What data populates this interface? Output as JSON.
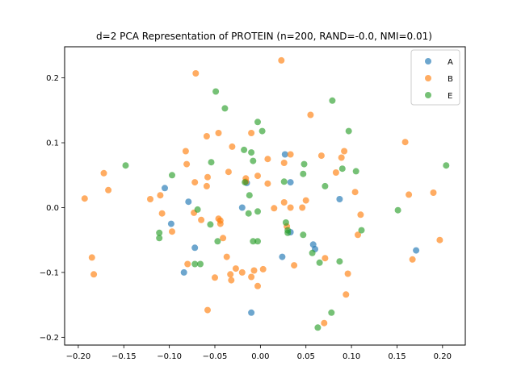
{
  "chart_data": {
    "type": "scatter",
    "title": "d=2 PCA Representation of PROTEIN (n=200, RAND=-0.0, NMI=0.01)",
    "xlabel": "",
    "ylabel": "",
    "xlim": [
      -0.215,
      0.225
    ],
    "ylim": [
      -0.212,
      0.248
    ],
    "xticks": [
      -0.2,
      -0.15,
      -0.1,
      -0.05,
      0.0,
      0.05,
      0.1,
      0.15,
      0.2
    ],
    "xtick_labels": [
      "−0.20",
      "−0.15",
      "−0.10",
      "−0.05",
      "0.00",
      "0.05",
      "0.10",
      "0.15",
      "0.20"
    ],
    "yticks": [
      -0.2,
      -0.1,
      0.0,
      0.1,
      0.2
    ],
    "ytick_labels": [
      "−0.2",
      "−0.1",
      "0.0",
      "0.1",
      "0.2"
    ],
    "grid": false,
    "legend_position": "top-right",
    "series": [
      {
        "name": "A",
        "color": "#1f77b4",
        "points": [
          [
            0.027,
            0.082
          ],
          [
            -0.105,
            0.03
          ],
          [
            -0.079,
            0.009
          ],
          [
            -0.098,
            -0.025
          ],
          [
            -0.072,
            -0.062
          ],
          [
            -0.084,
            -0.1
          ],
          [
            -0.02,
            0.0
          ],
          [
            -0.015,
            0.038
          ],
          [
            -0.01,
            -0.162
          ],
          [
            0.024,
            -0.076
          ],
          [
            0.033,
            0.039
          ],
          [
            0.033,
            -0.038
          ],
          [
            0.058,
            -0.057
          ],
          [
            0.06,
            -0.064
          ],
          [
            0.087,
            0.013
          ],
          [
            0.171,
            -0.066
          ]
        ]
      },
      {
        "name": "B",
        "color": "#ff7f0e",
        "points": [
          [
            -0.071,
            0.207
          ],
          [
            0.023,
            0.227
          ],
          [
            -0.193,
            0.014
          ],
          [
            -0.185,
            -0.077
          ],
          [
            -0.183,
            -0.103
          ],
          [
            -0.172,
            0.053
          ],
          [
            -0.167,
            0.027
          ],
          [
            -0.121,
            0.013
          ],
          [
            -0.11,
            0.019
          ],
          [
            -0.108,
            -0.009
          ],
          [
            -0.097,
            -0.037
          ],
          [
            -0.082,
            0.087
          ],
          [
            -0.081,
            0.067
          ],
          [
            -0.08,
            -0.087
          ],
          [
            -0.073,
            -0.008
          ],
          [
            -0.072,
            0.039
          ],
          [
            -0.065,
            -0.019
          ],
          [
            -0.059,
            0.11
          ],
          [
            -0.058,
            0.047
          ],
          [
            -0.058,
            -0.158
          ],
          [
            -0.059,
            0.033
          ],
          [
            -0.05,
            -0.108
          ],
          [
            -0.046,
            0.115
          ],
          [
            -0.046,
            -0.017
          ],
          [
            -0.044,
            -0.02
          ],
          [
            -0.044,
            -0.025
          ],
          [
            -0.041,
            -0.047
          ],
          [
            -0.035,
            0.055
          ],
          [
            -0.031,
            0.094
          ],
          [
            -0.033,
            -0.103
          ],
          [
            -0.032,
            -0.112
          ],
          [
            -0.037,
            -0.076
          ],
          [
            -0.027,
            -0.094
          ],
          [
            -0.02,
            -0.1
          ],
          [
            -0.016,
            0.04
          ],
          [
            -0.016,
            0.045
          ],
          [
            -0.01,
            0.115
          ],
          [
            -0.01,
            -0.107
          ],
          [
            -0.007,
            -0.097
          ],
          [
            -0.003,
            -0.121
          ],
          [
            -0.003,
            0.049
          ],
          [
            0.003,
            -0.095
          ],
          [
            0.008,
            0.075
          ],
          [
            0.008,
            0.037
          ],
          [
            0.015,
            -0.001
          ],
          [
            0.026,
            0.069
          ],
          [
            0.026,
            0.008
          ],
          [
            0.029,
            -0.029
          ],
          [
            0.033,
            0.082
          ],
          [
            0.037,
            -0.089
          ],
          [
            0.033,
            0.0
          ],
          [
            0.046,
            0.0
          ],
          [
            0.05,
            0.011
          ],
          [
            0.055,
            0.143
          ],
          [
            0.067,
            0.08
          ],
          [
            0.071,
            -0.078
          ],
          [
            0.07,
            -0.178
          ],
          [
            0.083,
            0.054
          ],
          [
            0.089,
            0.077
          ],
          [
            0.092,
            0.087
          ],
          [
            0.094,
            -0.134
          ],
          [
            0.096,
            -0.102
          ],
          [
            0.104,
            0.024
          ],
          [
            0.107,
            -0.042
          ],
          [
            0.11,
            -0.011
          ],
          [
            0.159,
            0.101
          ],
          [
            0.163,
            0.02
          ],
          [
            0.167,
            -0.08
          ],
          [
            0.19,
            0.023
          ],
          [
            0.197,
            -0.05
          ]
        ]
      },
      {
        "name": "E",
        "color": "#2ca02c",
        "points": [
          [
            -0.049,
            0.179
          ],
          [
            -0.039,
            0.153
          ],
          [
            -0.148,
            0.065
          ],
          [
            -0.097,
            0.05
          ],
          [
            -0.111,
            -0.039
          ],
          [
            -0.111,
            -0.047
          ],
          [
            -0.069,
            -0.003
          ],
          [
            -0.072,
            -0.087
          ],
          [
            -0.066,
            -0.087
          ],
          [
            -0.054,
            0.07
          ],
          [
            -0.055,
            -0.026
          ],
          [
            -0.047,
            -0.052
          ],
          [
            -0.018,
            0.089
          ],
          [
            -0.017,
            0.039
          ],
          [
            -0.013,
            -0.009
          ],
          [
            -0.01,
            0.085
          ],
          [
            -0.008,
            0.072
          ],
          [
            -0.003,
            0.132
          ],
          [
            -0.003,
            -0.006
          ],
          [
            0.002,
            0.118
          ],
          [
            -0.012,
            0.019
          ],
          [
            -0.008,
            -0.052
          ],
          [
            -0.003,
            -0.052
          ],
          [
            0.026,
            0.04
          ],
          [
            0.028,
            -0.023
          ],
          [
            0.03,
            -0.035
          ],
          [
            0.03,
            -0.039
          ],
          [
            0.047,
            0.052
          ],
          [
            0.048,
            0.067
          ],
          [
            0.047,
            -0.042
          ],
          [
            0.057,
            -0.07
          ],
          [
            0.063,
            -0.185
          ],
          [
            0.065,
            -0.085
          ],
          [
            0.071,
            0.033
          ],
          [
            0.079,
            0.165
          ],
          [
            0.078,
            -0.162
          ],
          [
            0.087,
            -0.083
          ],
          [
            0.09,
            0.06
          ],
          [
            0.097,
            0.118
          ],
          [
            0.105,
            0.056
          ],
          [
            0.111,
            -0.035
          ],
          [
            0.151,
            -0.004
          ],
          [
            0.204,
            0.065
          ]
        ]
      }
    ]
  }
}
